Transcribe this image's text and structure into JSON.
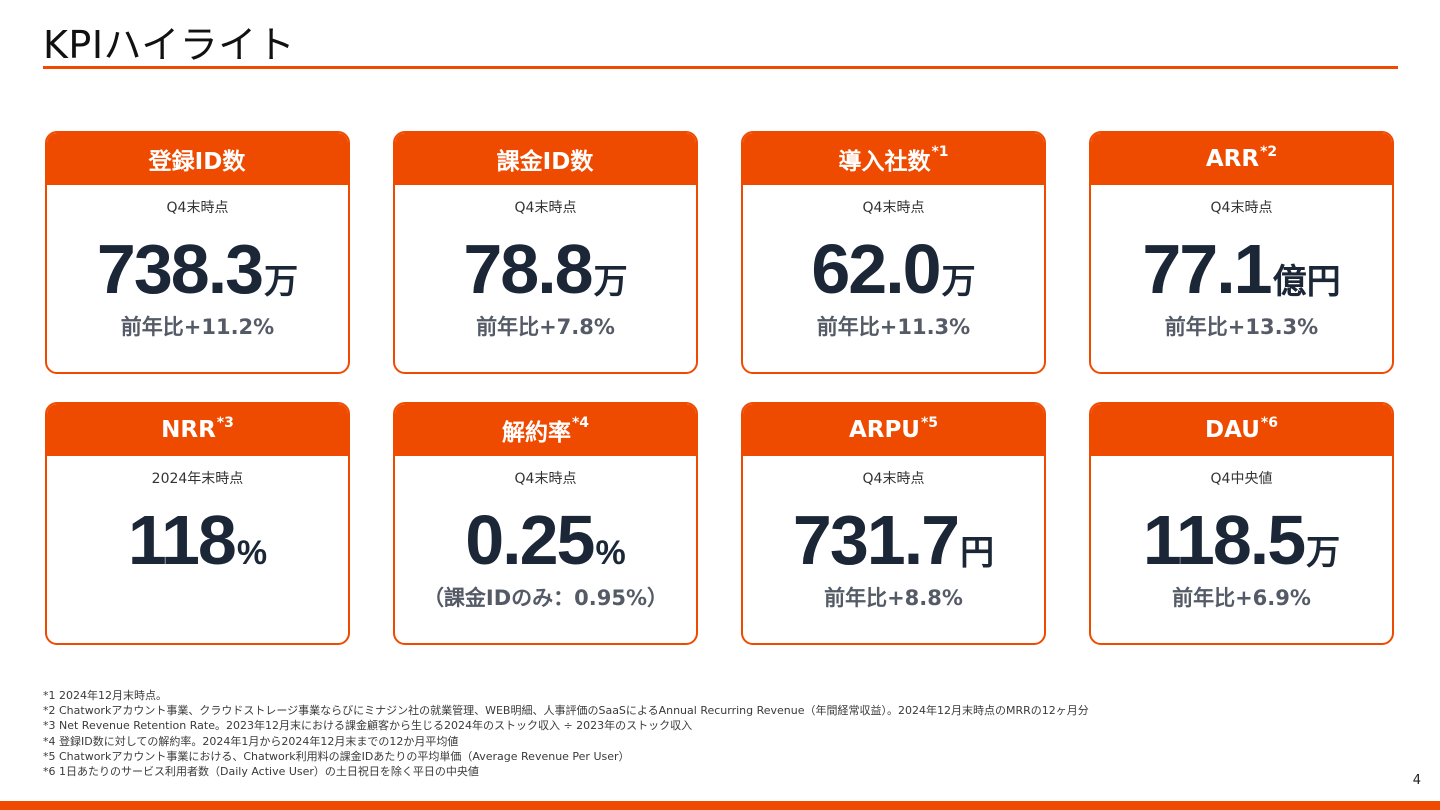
{
  "title": "KPIハイライト",
  "cards": [
    {
      "label": "登録ID数",
      "sup": "",
      "sub": "Q4末時点",
      "value": "738.3",
      "unit": "万",
      "note": "前年比+11.2%"
    },
    {
      "label": "課金ID数",
      "sup": "",
      "sub": "Q4末時点",
      "value": "78.8",
      "unit": "万",
      "note": "前年比+7.8%"
    },
    {
      "label": "導入社数",
      "sup": "*1",
      "sub": "Q4末時点",
      "value": "62.0",
      "unit": "万",
      "note": "前年比+11.3%"
    },
    {
      "label": "ARR",
      "sup": "*2",
      "sub": "Q4末時点",
      "value": "77.1",
      "unit": "億円",
      "note": "前年比+13.3%"
    },
    {
      "label": "NRR",
      "sup": "*3",
      "sub": "2024年末時点",
      "value": "118",
      "unit": "%",
      "note": ""
    },
    {
      "label": "解約率",
      "sup": "*4",
      "sub": "Q4末時点",
      "value": "0.25",
      "unit": "%",
      "note": "（課金IDのみ：0.95%）"
    },
    {
      "label": "ARPU",
      "sup": "*5",
      "sub": "Q4末時点",
      "value": "731.7",
      "unit": "円",
      "note": "前年比+8.8%"
    },
    {
      "label": "DAU",
      "sup": "*6",
      "sub": "Q4中央値",
      "value": "118.5",
      "unit": "万",
      "note": "前年比+6.9%"
    }
  ],
  "footnotes": [
    "*1 2024年12月末時点。",
    "*2 Chatworkアカウント事業、クラウドストレージ事業ならびにミナジン社の就業管理、WEB明細、人事評価のSaaSによるAnnual Recurring Revenue（年間経常収益）。2024年12月末時点のMRRの12ヶ月分",
    "*3 Net Revenue Retention Rate。2023年12月末における課金顧客から生じる2024年のストック収入 ÷ 2023年のストック収入",
    "*4 登録ID数に対しての解約率。2024年1月から2024年12月末までの12か月平均値",
    "*5 Chatworkアカウント事業における、Chatwork利用料の課金IDあたりの平均単価（Average Revenue Per User）",
    "*6 1日あたりのサービス利用者数（Daily Active User）の土日祝日を除く平日の中央値"
  ],
  "page_number": "4",
  "colors": {
    "accent": "#ef4b00",
    "value_text": "#1b2636"
  }
}
